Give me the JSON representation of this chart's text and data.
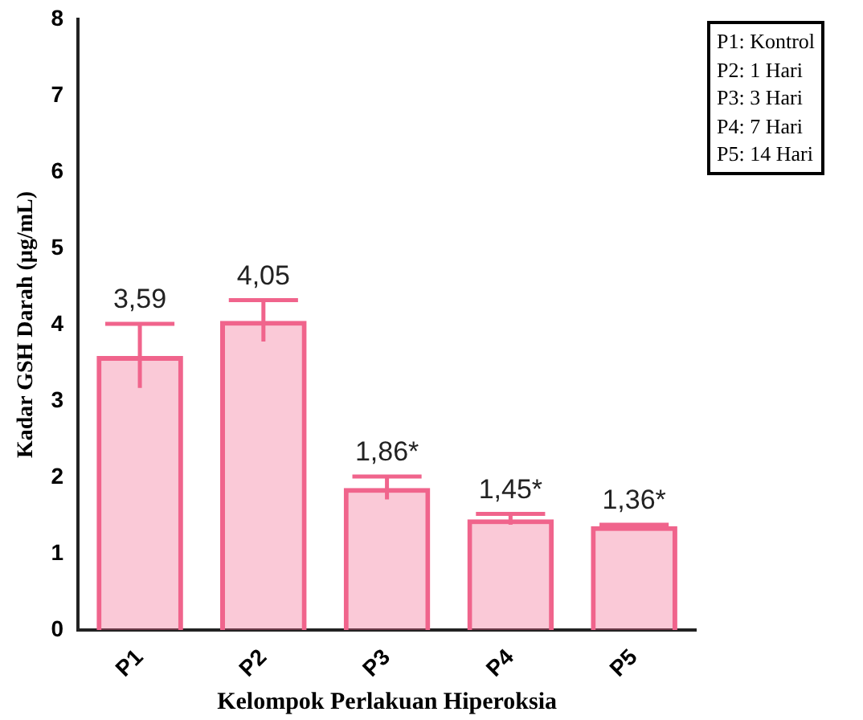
{
  "chart_data": {
    "type": "bar",
    "xlabel": "Kelompok Perlakuan Hiperoksia",
    "ylabel": "Kadar GSH Darah (µg/mL)",
    "categories": [
      "P1",
      "P2",
      "P3",
      "P4",
      "P5"
    ],
    "values": [
      3.59,
      4.05,
      1.86,
      1.45,
      1.36
    ],
    "errors": [
      0.42,
      0.27,
      0.15,
      0.07,
      0.02
    ],
    "value_labels": [
      "3,59",
      "4,05",
      "1,86*",
      "1,45*",
      "1,36*"
    ],
    "color": "#f0648c",
    "ylim": [
      0,
      8
    ],
    "yticks": [
      0,
      1,
      2,
      3,
      4,
      5,
      6,
      7,
      8
    ],
    "grid": false,
    "annotations": [
      "P1: Kontrol",
      "P2: 1 Hari",
      "P3: 3 Hari",
      "P4: 7 Hari",
      "P5: 14 Hari"
    ]
  }
}
